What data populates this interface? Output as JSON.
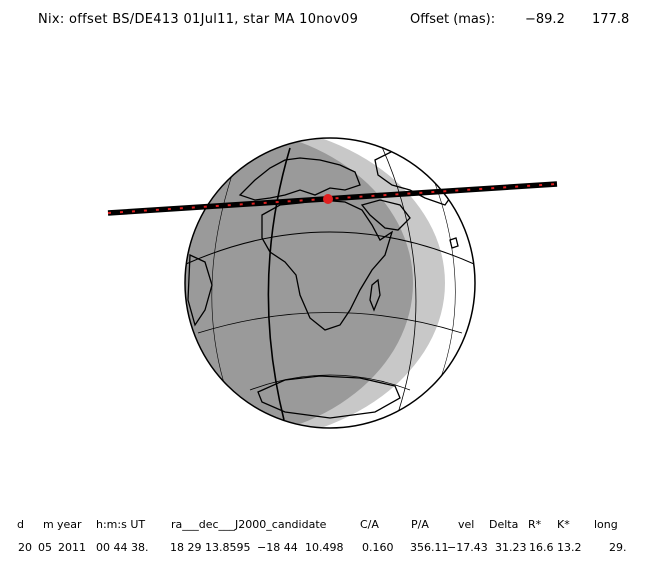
{
  "header": {
    "title": "Nix: offset BS/DE413 01Jul11, star MA 10nov09",
    "offset_label": "Offset (mas):",
    "offset_x": "−89.2",
    "offset_y": "177.8"
  },
  "colors": {
    "night": "#9a9a9a",
    "twilight": "#c8c8c8",
    "day": "#ffffff",
    "track": "#e02020",
    "coast": "#000000"
  },
  "table": {
    "headers": [
      "d",
      "m",
      "year",
      "h:m:s UT",
      "ra___dec___J2000_candidate",
      "C/A",
      "P/A",
      "vel",
      "Delta",
      "R*",
      "K*",
      "long"
    ],
    "values": [
      "20",
      "05",
      "2011",
      "00 44 38.",
      "18 29 13.8595",
      "−18 44",
      "10.498",
      "0.160",
      "356.11",
      "−17.43",
      "31.23",
      "16.6",
      "13.2",
      "29."
    ]
  }
}
